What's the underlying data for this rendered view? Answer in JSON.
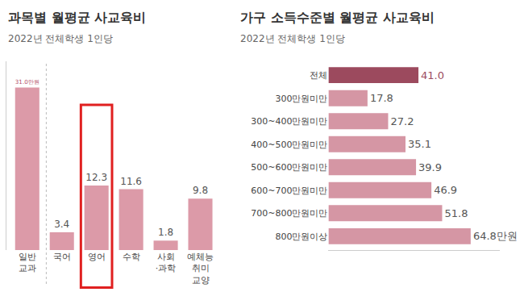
{
  "chart_data": [
    {
      "type": "bar",
      "title": "과목별 월평균 사교육비",
      "subtitle": "2022년 전체학생 1인당",
      "categories": [
        "일반 교과",
        "국어",
        "영어",
        "수학",
        "사회·과학",
        "예체능 취미 교양"
      ],
      "values": [
        31.0,
        3.4,
        12.3,
        11.6,
        1.8,
        9.8
      ],
      "value_labels": [
        "31.0만원",
        "3.4",
        "12.3",
        "11.6",
        "1.8",
        "9.8"
      ],
      "color": "#dc9aa8",
      "ylim": [
        0,
        36
      ],
      "grid": false,
      "data_labels": true,
      "tick_labels": "x"
    },
    {
      "type": "bar",
      "title": "가구 소득수준별 월평균 사교육비",
      "subtitle": "2022년 전체학생 1인당",
      "orientation": "horizontal",
      "categories": [
        "전체",
        "300만원미만",
        "300~400만원미만",
        "400~500만원미만",
        "500~600만원미만",
        "600~700만원미만",
        "700~800만원미만",
        "800만원이상"
      ],
      "values": [
        41.0,
        17.8,
        27.2,
        35.1,
        39.9,
        46.9,
        51.8,
        64.8
      ],
      "value_labels": [
        "41.0",
        "17.8",
        "27.2",
        "35.1",
        "39.9",
        "46.9",
        "51.8",
        "64.8만원"
      ],
      "colors": [
        "#9c4a5e",
        "#d596a4",
        "#d596a4",
        "#d596a4",
        "#d596a4",
        "#d596a4",
        "#d596a4",
        "#d596a4"
      ],
      "xlim": [
        0,
        78
      ],
      "grid": false,
      "data_labels": true,
      "tick_labels": "y"
    }
  ]
}
